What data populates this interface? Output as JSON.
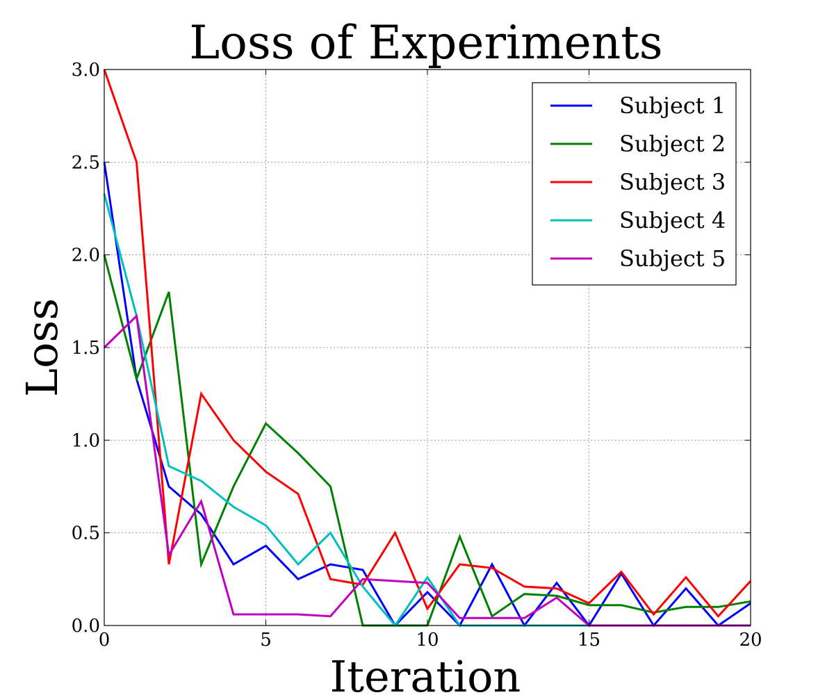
{
  "chart_data": {
    "type": "line",
    "title": "Loss of Experiments",
    "xlabel": "Iteration",
    "ylabel": "Loss",
    "xlim": [
      0,
      20
    ],
    "ylim": [
      0,
      3.0
    ],
    "grid": true,
    "legend_position": "top-right",
    "xticks": [
      "0",
      "5",
      "10",
      "15",
      "20"
    ],
    "yticks": [
      "0.0",
      "0.5",
      "1.0",
      "1.5",
      "2.0",
      "2.5",
      "3.0"
    ],
    "x": [
      0,
      1,
      2,
      3,
      4,
      5,
      6,
      7,
      8,
      9,
      10,
      11,
      12,
      13,
      14,
      15,
      16,
      17,
      18,
      19,
      20
    ],
    "series": [
      {
        "name": "Subject 1",
        "color": "#0000ff",
        "values": [
          2.5,
          1.33,
          0.75,
          0.6,
          0.33,
          0.43,
          0.25,
          0.33,
          0.3,
          0.0,
          0.18,
          0.0,
          0.33,
          0.0,
          0.23,
          0.0,
          0.28,
          0.0,
          0.2,
          0.0,
          0.12
        ]
      },
      {
        "name": "Subject 2",
        "color": "#008000",
        "values": [
          2.0,
          1.33,
          1.8,
          0.33,
          0.75,
          1.09,
          0.93,
          0.75,
          0.0,
          0.0,
          0.0,
          0.48,
          0.05,
          0.17,
          0.16,
          0.11,
          0.11,
          0.07,
          0.1,
          0.1,
          0.13
        ]
      },
      {
        "name": "Subject 3",
        "color": "#ff0000",
        "values": [
          3.0,
          2.5,
          0.33,
          1.25,
          1.0,
          0.83,
          0.71,
          0.25,
          0.22,
          0.5,
          0.09,
          0.33,
          0.31,
          0.21,
          0.2,
          0.12,
          0.29,
          0.06,
          0.26,
          0.05,
          0.24
        ]
      },
      {
        "name": "Subject 4",
        "color": "#00bfbf",
        "values": [
          2.33,
          1.67,
          0.86,
          0.78,
          0.64,
          0.54,
          0.33,
          0.5,
          0.21,
          0.0,
          0.26,
          0.0,
          0.0,
          0.0,
          0.0,
          0.0,
          0.0,
          0.0,
          0.0,
          0.0,
          0.0
        ]
      },
      {
        "name": "Subject 5",
        "color": "#bf00bf",
        "values": [
          1.5,
          1.67,
          0.38,
          0.67,
          0.06,
          0.06,
          0.06,
          0.05,
          0.25,
          0.24,
          0.23,
          0.04,
          0.04,
          0.04,
          0.15,
          0.0,
          0.0,
          0.0,
          0.0,
          0.0,
          0.0
        ]
      }
    ]
  }
}
